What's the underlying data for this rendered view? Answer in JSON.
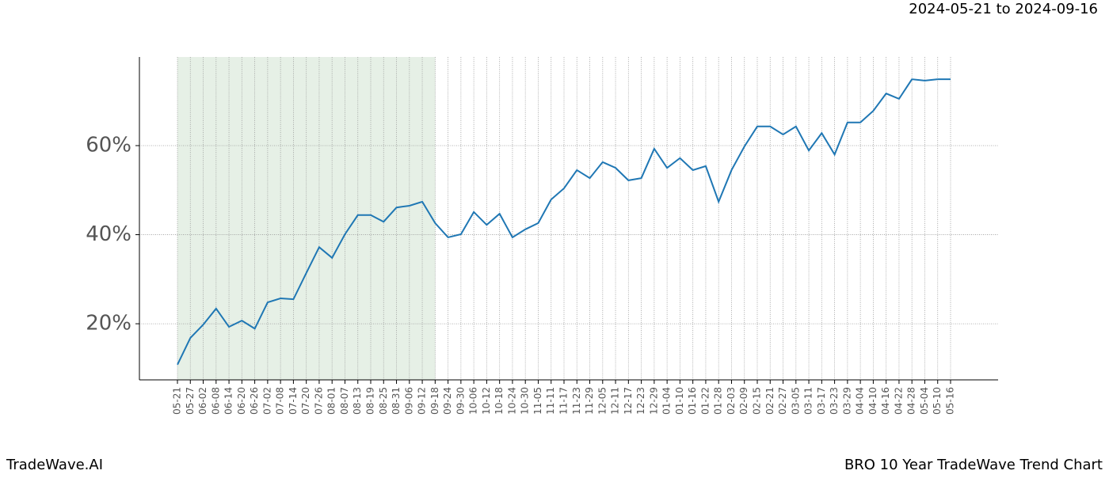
{
  "header": {
    "date_range": "2024-05-21 to 2024-09-16"
  },
  "chart_data": {
    "type": "line",
    "categories": [
      "05-21",
      "05-27",
      "06-02",
      "06-08",
      "06-14",
      "06-20",
      "06-26",
      "07-02",
      "07-08",
      "07-14",
      "07-20",
      "07-26",
      "08-01",
      "08-07",
      "08-13",
      "08-19",
      "08-25",
      "08-31",
      "09-06",
      "09-12",
      "09-18",
      "09-24",
      "09-30",
      "10-06",
      "10-12",
      "10-18",
      "10-24",
      "10-30",
      "11-05",
      "11-11",
      "11-17",
      "11-23",
      "11-29",
      "12-05",
      "12-11",
      "12-17",
      "12-23",
      "12-29",
      "01-04",
      "01-10",
      "01-16",
      "01-22",
      "01-28",
      "02-03",
      "02-09",
      "02-15",
      "02-21",
      "02-27",
      "03-05",
      "03-11",
      "03-17",
      "03-23",
      "03-29",
      "04-04",
      "04-10",
      "04-16",
      "04-22",
      "04-28",
      "05-04",
      "05-10",
      "05-16"
    ],
    "values": [
      10.8,
      16.8,
      19.8,
      23.4,
      19.3,
      20.7,
      18.9,
      24.8,
      25.7,
      25.5,
      31.4,
      37.2,
      34.8,
      40.1,
      44.4,
      44.4,
      42.9,
      46.1,
      46.5,
      47.4,
      42.6,
      39.4,
      40.1,
      45.1,
      42.2,
      44.7,
      39.4,
      41.2,
      42.6,
      47.9,
      50.4,
      54.5,
      52.7,
      56.3,
      55.0,
      52.2,
      52.7,
      59.3,
      55.0,
      57.2,
      54.5,
      55.4,
      47.4,
      54.5,
      59.8,
      64.3,
      64.3,
      62.5,
      64.3,
      58.9,
      62.8,
      58.0,
      65.2,
      65.2,
      67.8,
      71.7,
      70.5,
      74.9,
      74.6,
      74.9,
      74.9
    ],
    "color": "#1f77b4",
    "shaded_range": [
      "05-21",
      "09-18"
    ],
    "shade_color": "#e6f0e6",
    "ylim": [
      7.4,
      79.9
    ],
    "yticks": [
      {
        "value": 20,
        "label": "20%"
      },
      {
        "value": 40,
        "label": "40%"
      },
      {
        "value": 60,
        "label": "60%"
      }
    ],
    "grid": true
  },
  "footer": {
    "brand": "TradeWave.AI",
    "chart_name": "BRO 10 Year TradeWave Trend Chart"
  }
}
